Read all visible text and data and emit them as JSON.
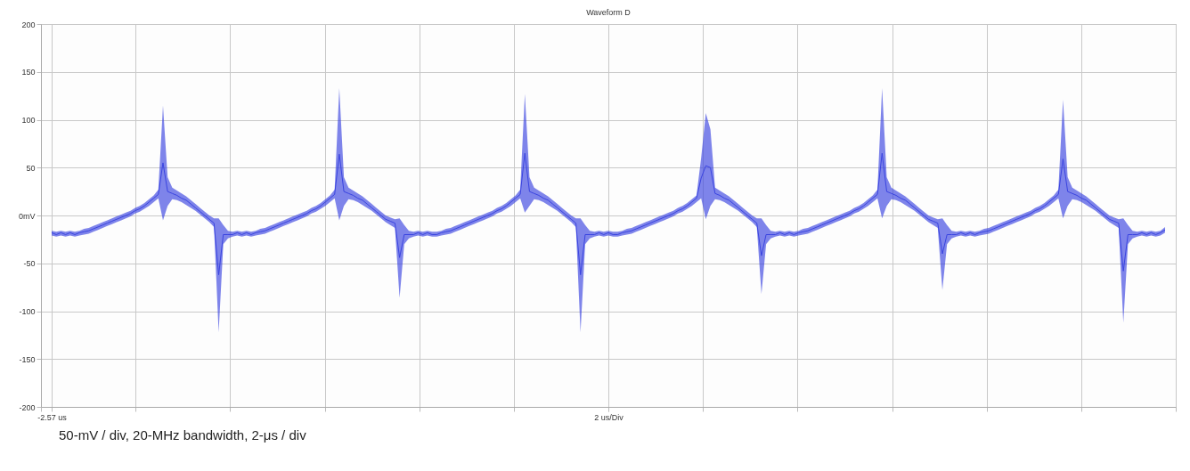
{
  "chart_data": {
    "type": "line",
    "title": "Waveform D",
    "annotations": [
      "50-mV / div, 20-MHz bandwidth, 2-μs / div"
    ],
    "categories": [
      "-2.57 us",
      null,
      null,
      null,
      null,
      null,
      null,
      null,
      null,
      null,
      null,
      null,
      null,
      null,
      null,
      null,
      null,
      null,
      null,
      null,
      null,
      null,
      null,
      null,
      null,
      null,
      null,
      null,
      null,
      null,
      null,
      null,
      null,
      null,
      null,
      null,
      null,
      null,
      null,
      null,
      null,
      null,
      null,
      null,
      null,
      null,
      null,
      null,
      null,
      null,
      null,
      null,
      null,
      null,
      null,
      null,
      null,
      null,
      null,
      null,
      null,
      null,
      null,
      null,
      null,
      null,
      null,
      null,
      null,
      null,
      null,
      null,
      null,
      null,
      null,
      null,
      null,
      null,
      null,
      null,
      null,
      null,
      null,
      null,
      null,
      null,
      null,
      null,
      null,
      null,
      null,
      null,
      null,
      null,
      null,
      null,
      null,
      null,
      null,
      null,
      null,
      null,
      null,
      null,
      null,
      null,
      null,
      null,
      null,
      null,
      null,
      null,
      null,
      null,
      null,
      null,
      null,
      null,
      null,
      null,
      "2 us/Div",
      null,
      null,
      null,
      null,
      null,
      null,
      null,
      null,
      null,
      null,
      null,
      null,
      null,
      null,
      null,
      null,
      null,
      null,
      null,
      null,
      null,
      null,
      null,
      null,
      null,
      null,
      null,
      null,
      null,
      null,
      null,
      null,
      null,
      null,
      null,
      null,
      null,
      null,
      null,
      null,
      null,
      null,
      null,
      null,
      null,
      null,
      null,
      null,
      null,
      null,
      null,
      null,
      null,
      null,
      null,
      null,
      null,
      null,
      null,
      null,
      null,
      null,
      null,
      null,
      null,
      null,
      null,
      null,
      null,
      null,
      null,
      null,
      null,
      null,
      null,
      null,
      null,
      null,
      null,
      null,
      null,
      null,
      null,
      null,
      null,
      null,
      null,
      null,
      null,
      null,
      null,
      null,
      null,
      null,
      null,
      null,
      null,
      null,
      null,
      null,
      null,
      null,
      null,
      null,
      null,
      null,
      null,
      null,
      null,
      null,
      null,
      null,
      null,
      null,
      null,
      null,
      null,
      null,
      null,
      null
    ],
    "ylim": [
      -200,
      200
    ],
    "yticks": [
      -200,
      -150,
      -100,
      -50,
      {
        "value": 0,
        "label": "0mV"
      },
      50,
      100,
      150,
      200
    ],
    "grid": true,
    "series": [
      {
        "color": "#3a44e0",
        "lower": [
          -21,
          -22,
          -21,
          -22,
          -21,
          -22,
          -21,
          -20,
          -19,
          -17,
          -15,
          -13,
          -11,
          -9,
          -7,
          -5,
          -3,
          -1,
          2,
          4,
          7,
          10,
          14,
          18,
          -5,
          10,
          17,
          16,
          14,
          11,
          8,
          5,
          1,
          -3,
          -7,
          -12,
          -122,
          -30,
          -24,
          -22,
          -21,
          -22,
          -21,
          -22,
          -21,
          -20,
          -19,
          -17,
          -15,
          -13,
          -11,
          -9,
          -7,
          -5,
          -3,
          -1,
          2,
          4,
          7,
          10,
          14,
          18,
          -5,
          10,
          17,
          16,
          14,
          11,
          8,
          5,
          1,
          -3,
          -7,
          -10,
          -13,
          -86,
          -30,
          -24,
          -22,
          -21,
          -22,
          -21,
          -22,
          -22,
          -21,
          -20,
          -19,
          -17,
          -15,
          -13,
          -11,
          -9,
          -7,
          -5,
          -3,
          -1,
          2,
          4,
          7,
          10,
          14,
          18,
          3,
          10,
          17,
          16,
          14,
          11,
          8,
          5,
          1,
          -3,
          -7,
          -12,
          -122,
          -30,
          -24,
          -22,
          -21,
          -22,
          -21,
          -22,
          -22,
          -21,
          -20,
          -19,
          -17,
          -15,
          -13,
          -11,
          -9,
          -7,
          -5,
          -3,
          -1,
          2,
          4,
          7,
          10,
          14,
          18,
          -4,
          10,
          17,
          16,
          14,
          11,
          8,
          5,
          1,
          -3,
          -7,
          -12,
          -82,
          -30,
          -24,
          -22,
          -21,
          -22,
          -21,
          -22,
          -21,
          -20,
          -19,
          -17,
          -15,
          -13,
          -11,
          -9,
          -7,
          -5,
          -3,
          -1,
          2,
          4,
          7,
          10,
          14,
          18,
          -3,
          10,
          17,
          16,
          14,
          11,
          8,
          5,
          1,
          -3,
          -7,
          -10,
          -13,
          -78,
          -30,
          -24,
          -22,
          -21,
          -22,
          -21,
          -22,
          -21,
          -20,
          -19,
          -17,
          -15,
          -13,
          -11,
          -9,
          -7,
          -5,
          -3,
          -1,
          2,
          4,
          7,
          10,
          14,
          18,
          -3,
          10,
          17,
          16,
          14,
          11,
          8,
          5,
          1,
          -3,
          -7,
          -10,
          -13,
          -112,
          -30,
          -24,
          -22,
          -21,
          -22,
          -21,
          -22,
          -21,
          -18
        ],
        "upper": [
          -16,
          -17,
          -16,
          -17,
          -16,
          -17,
          -16,
          -14,
          -13,
          -11,
          -9,
          -7,
          -5,
          -3,
          -1,
          1,
          3,
          5,
          8,
          10,
          13,
          17,
          21,
          27,
          115,
          40,
          29,
          26,
          23,
          20,
          16,
          12,
          8,
          4,
          0,
          -3,
          -3,
          -10,
          -16,
          -17,
          -16,
          -17,
          -16,
          -17,
          -16,
          -14,
          -13,
          -11,
          -9,
          -7,
          -5,
          -3,
          -1,
          1,
          3,
          5,
          8,
          10,
          13,
          17,
          21,
          27,
          133,
          40,
          29,
          26,
          23,
          20,
          16,
          12,
          8,
          4,
          0,
          -2,
          -4,
          -3,
          -10,
          -16,
          -17,
          -16,
          -17,
          -16,
          -17,
          -17,
          -16,
          -14,
          -13,
          -11,
          -9,
          -7,
          -5,
          -3,
          -1,
          1,
          3,
          5,
          8,
          10,
          13,
          17,
          21,
          27,
          127,
          40,
          29,
          26,
          23,
          20,
          16,
          12,
          8,
          4,
          0,
          -3,
          -3,
          -10,
          -16,
          -17,
          -16,
          -17,
          -16,
          -17,
          -17,
          -16,
          -14,
          -13,
          -11,
          -9,
          -7,
          -5,
          -3,
          -1,
          1,
          3,
          5,
          8,
          10,
          13,
          17,
          21,
          60,
          107,
          90,
          29,
          26,
          23,
          20,
          16,
          12,
          8,
          4,
          0,
          -3,
          -3,
          -10,
          -16,
          -17,
          -16,
          -17,
          -16,
          -17,
          -16,
          -14,
          -13,
          -11,
          -9,
          -7,
          -5,
          -3,
          -1,
          1,
          3,
          5,
          8,
          10,
          13,
          17,
          21,
          27,
          133,
          40,
          29,
          26,
          23,
          20,
          16,
          12,
          8,
          4,
          0,
          -2,
          -4,
          -3,
          -10,
          -16,
          -17,
          -16,
          -17,
          -16,
          -17,
          -16,
          -14,
          -13,
          -11,
          -9,
          -7,
          -5,
          -3,
          -1,
          1,
          3,
          5,
          8,
          10,
          13,
          17,
          21,
          27,
          121,
          40,
          29,
          26,
          23,
          20,
          16,
          12,
          8,
          4,
          0,
          -2,
          -4,
          -3,
          -10,
          -16,
          -17,
          -16,
          -17,
          -16,
          -17,
          -16,
          -12
        ],
        "values": [
          -18,
          -20,
          -18,
          -20,
          -18,
          -20,
          -18,
          -17,
          -16,
          -14,
          -12,
          -10,
          -8,
          -6,
          -4,
          -2,
          0,
          2,
          5,
          7,
          10,
          14,
          18,
          22,
          55,
          25,
          23,
          21,
          18,
          16,
          12,
          8,
          4,
          0,
          -4,
          -8,
          -62,
          -20,
          -20,
          -20,
          -18,
          -20,
          -18,
          -20,
          -18,
          -17,
          -16,
          -14,
          -12,
          -10,
          -8,
          -6,
          -4,
          -2,
          0,
          2,
          5,
          7,
          10,
          14,
          18,
          22,
          64,
          25,
          23,
          21,
          18,
          16,
          12,
          8,
          4,
          0,
          -4,
          -6,
          -8,
          -44,
          -20,
          -20,
          -20,
          -18,
          -20,
          -18,
          -20,
          -20,
          -18,
          -17,
          -16,
          -14,
          -12,
          -10,
          -8,
          -6,
          -4,
          -2,
          0,
          2,
          5,
          7,
          10,
          14,
          18,
          22,
          65,
          25,
          23,
          21,
          18,
          16,
          12,
          8,
          4,
          0,
          -4,
          -8,
          -62,
          -20,
          -20,
          -20,
          -18,
          -20,
          -18,
          -20,
          -20,
          -18,
          -17,
          -16,
          -14,
          -12,
          -10,
          -8,
          -6,
          -4,
          -2,
          0,
          2,
          5,
          7,
          10,
          14,
          18,
          39,
          52,
          50,
          23,
          21,
          18,
          16,
          12,
          8,
          4,
          0,
          -4,
          -8,
          -42,
          -20,
          -20,
          -20,
          -18,
          -20,
          -18,
          -20,
          -18,
          -17,
          -16,
          -14,
          -12,
          -10,
          -8,
          -6,
          -4,
          -2,
          0,
          2,
          5,
          7,
          10,
          14,
          18,
          22,
          65,
          25,
          23,
          21,
          18,
          16,
          12,
          8,
          4,
          0,
          -4,
          -6,
          -8,
          -40,
          -20,
          -20,
          -20,
          -18,
          -20,
          -18,
          -20,
          -18,
          -17,
          -16,
          -14,
          -12,
          -10,
          -8,
          -6,
          -4,
          -2,
          0,
          2,
          5,
          7,
          10,
          14,
          18,
          22,
          59,
          25,
          23,
          21,
          18,
          16,
          12,
          8,
          4,
          0,
          -4,
          -6,
          -8,
          -58,
          -20,
          -20,
          -20,
          -18,
          -20,
          -18,
          -20,
          -18,
          -15
        ]
      }
    ]
  }
}
